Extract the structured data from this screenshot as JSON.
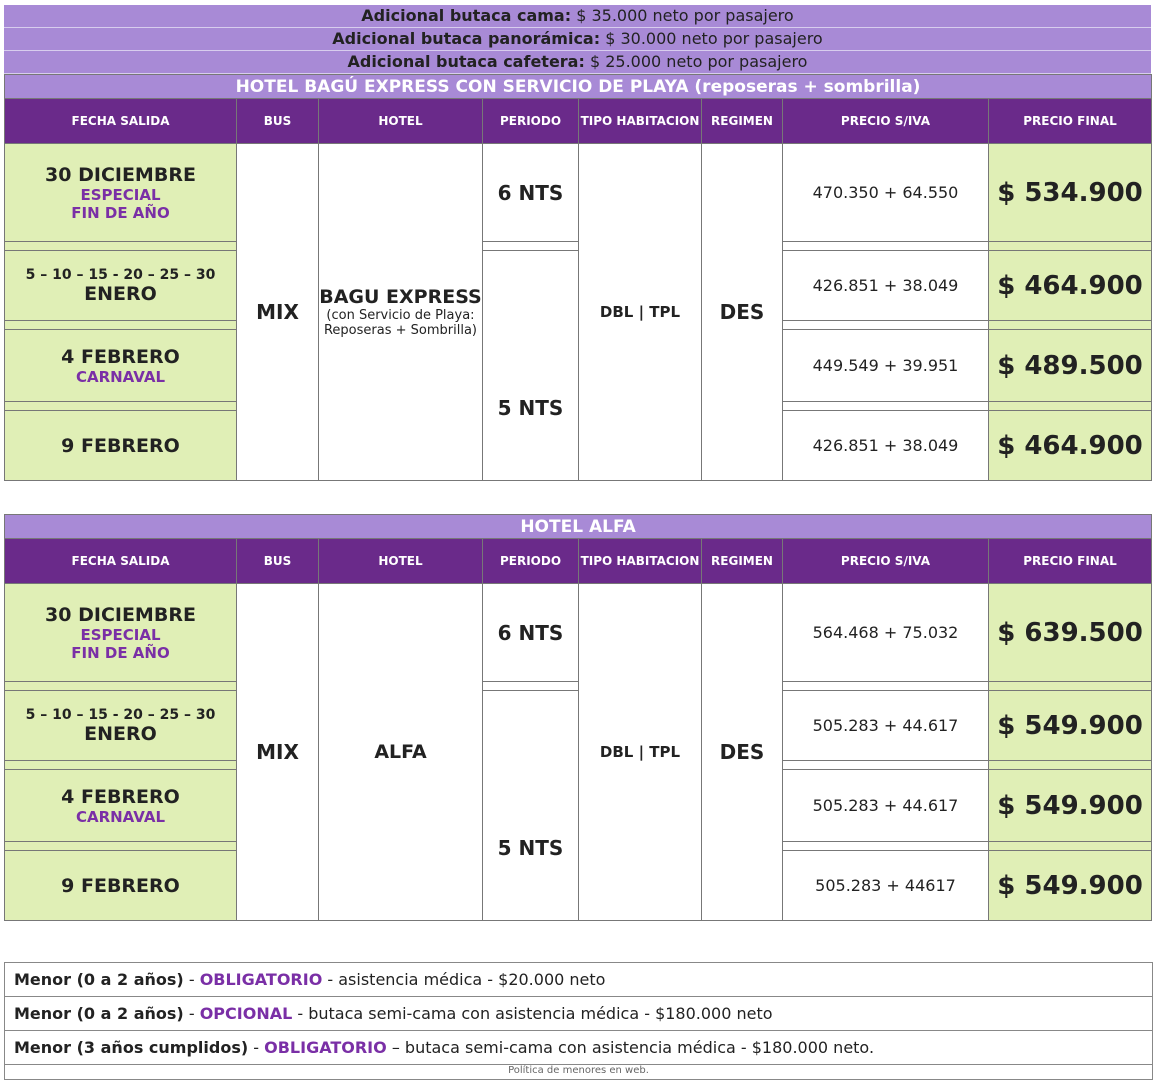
{
  "extras": [
    {
      "label": "Adicional butaca cama:",
      "text": "$ 35.000 neto por pasajero"
    },
    {
      "label": "Adicional butaca panorámica:",
      "text": "$ 30.000 neto por pasajero"
    },
    {
      "label": "Adicional butaca cafetera:",
      "text": "$ 25.000 neto por pasajero"
    }
  ],
  "tables": [
    {
      "title": "HOTEL BAGÚ EXPRESS CON SERVICIO DE PLAYA (reposeras + sombrilla)",
      "headers": [
        "FECHA SALIDA",
        "BUS",
        "HOTEL",
        "PERIODO",
        "TIPO HABITACION",
        "REGIMEN",
        "PRECIO S/IVA",
        "PRECIO FINAL"
      ],
      "bus": "MIX",
      "hotel": {
        "name": "BAGU EXPRESS",
        "note": "(con Servicio de Playa: Reposeras + Sombrilla)"
      },
      "periods": [
        "6 NTS",
        "5 NTS"
      ],
      "room": "DBL | TPL",
      "regime": "DES",
      "rows": [
        {
          "date": "30 DICIEMBRE",
          "sub": [
            "ESPECIAL",
            "FIN DE AÑO"
          ],
          "net": "470.350 + 64.550",
          "final": "$ 534.900"
        },
        {
          "pre": "5 – 10 – 15 - 20 – 25 – 30",
          "date": "ENERO",
          "net": "426.851 + 38.049",
          "final": "$ 464.900"
        },
        {
          "date": "4 FEBRERO",
          "sub": [
            "CARNAVAL"
          ],
          "net": "449.549 + 39.951",
          "final": "$ 489.500"
        },
        {
          "date": "9 FEBRERO",
          "net": "426.851 + 38.049",
          "final": "$ 464.900"
        }
      ]
    },
    {
      "title": "HOTEL ALFA",
      "headers": [
        "FECHA SALIDA",
        "BUS",
        "HOTEL",
        "PERIODO",
        "TIPO HABITACION",
        "REGIMEN",
        "PRECIO S/IVA",
        "PRECIO FINAL"
      ],
      "bus": "MIX",
      "hotel": {
        "name": "ALFA"
      },
      "periods": [
        "6 NTS",
        "5 NTS"
      ],
      "room": "DBL | TPL",
      "regime": "DES",
      "rows": [
        {
          "date": "30 DICIEMBRE",
          "sub": [
            "ESPECIAL",
            "FIN DE AÑO"
          ],
          "net": "564.468 + 75.032",
          "final": "$ 639.500"
        },
        {
          "pre": "5 – 10 – 15 - 20 – 25 – 30",
          "date": "ENERO",
          "net": "505.283 + 44.617",
          "final": "$ 549.900"
        },
        {
          "date": "4 FEBRERO",
          "sub": [
            "CARNAVAL"
          ],
          "net": "505.283 + 44.617",
          "final": "$ 549.900"
        },
        {
          "date": "9 FEBRERO",
          "net": "505.283 + 44617",
          "final": "$ 549.900"
        }
      ]
    }
  ],
  "notes": [
    {
      "who": "Menor (0 a 2 años)",
      "sep": "-",
      "status": "OBLIGATORIO",
      "detail": "- asistencia médica - $20.000 neto"
    },
    {
      "who": "Menor (0 a 2 años)",
      "sep": "-",
      "status": "OPCIONAL",
      "detail": "- butaca semi-cama con asistencia médica - $180.000 neto"
    },
    {
      "who": "Menor (3 años cumplidos)",
      "sep": "-",
      "status": "OBLIGATORIO",
      "detail": "– butaca semi-cama con asistencia médica - $180.000 neto."
    }
  ],
  "footnote": "Política de menores en web."
}
